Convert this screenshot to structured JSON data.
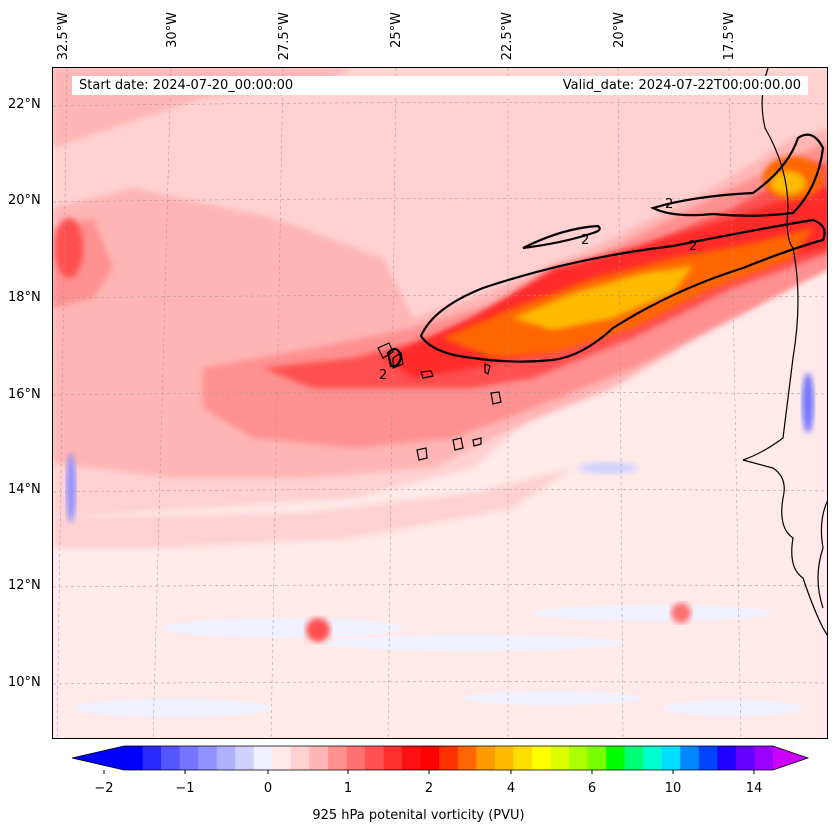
{
  "info": {
    "start_date": "Start date: 2024-07-20_00:00:00",
    "valid_date": "Valid_date: 2024-07-22T00:00:00.00"
  },
  "axes": {
    "lon_labels": [
      "32.5°W",
      "30°W",
      "27.5°W",
      "25°W",
      "22.5°W",
      "20°W",
      "17.5°W"
    ],
    "lat_labels": [
      "22°N",
      "20°N",
      "18°N",
      "16°N",
      "14°N",
      "12°N",
      "10°N"
    ]
  },
  "contour_label": "2",
  "colorbar": {
    "title": "925 hPa potenital vorticity (PVU)",
    "ticks": [
      "−2",
      "−1",
      "0",
      "1",
      "2",
      "4",
      "6",
      "10",
      "14"
    ],
    "colors": [
      "#0000ff",
      "#2a2aff",
      "#5555ff",
      "#7575ff",
      "#9191ff",
      "#b1b1ff",
      "#d1d1ff",
      "#f0f0ff",
      "#ffe9e9",
      "#ffd1d1",
      "#ffb5b5",
      "#ff9090",
      "#ff7070",
      "#ff5050",
      "#ff3030",
      "#ff1010",
      "#ff0000",
      "#ff3300",
      "#ff6600",
      "#ff9900",
      "#ffbb00",
      "#ffdd00",
      "#ffff00",
      "#ddff00",
      "#aaff00",
      "#77ff00",
      "#00ff00",
      "#00ff77",
      "#00ffcc",
      "#00ddff",
      "#0088ff",
      "#0044ff",
      "#2200ff",
      "#6600ff",
      "#9900ff"
    ],
    "under_color": "#0000ff",
    "over_color": "#cc00ff"
  }
}
